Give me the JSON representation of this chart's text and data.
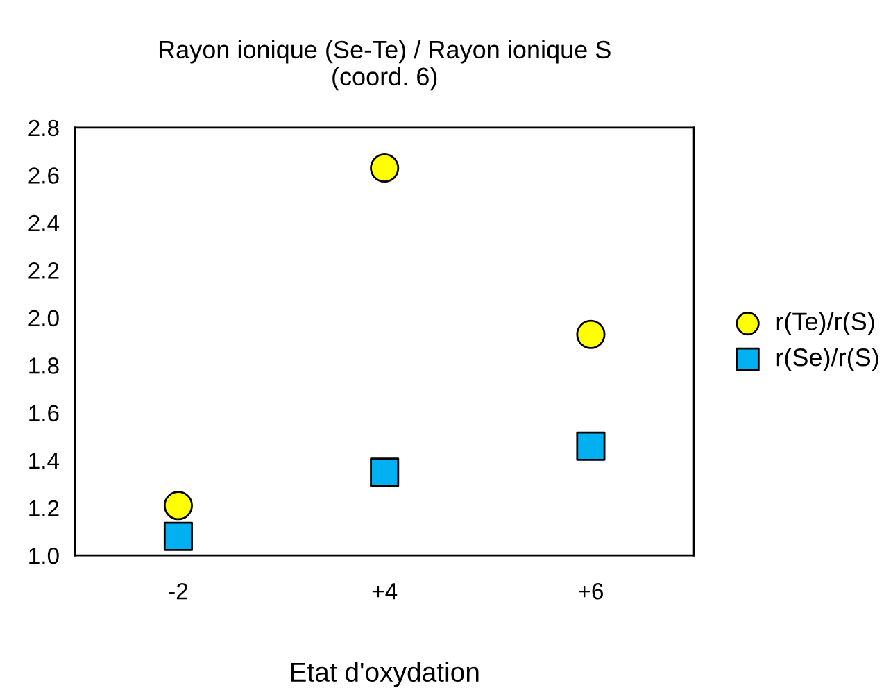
{
  "chart_data": {
    "type": "scatter",
    "title": "Rayon ionique (Se-Te) / Rayon ionique S\n(coord. 6)",
    "xlabel": "Etat d'oxydation",
    "categories": [
      "-2",
      "+4",
      "+6"
    ],
    "series": [
      {
        "name": "r(Te)/r(S)",
        "color": "#ffff00",
        "marker": "circle",
        "values": [
          1.21,
          2.63,
          1.93
        ]
      },
      {
        "name": "r(Se)/r(S)",
        "color": "#00b0f0",
        "marker": "square",
        "values": [
          1.08,
          1.35,
          1.46
        ]
      }
    ],
    "ylim": [
      1.0,
      2.8
    ],
    "yticks": [
      {
        "value": 1.0,
        "label": "1.0"
      },
      1.2,
      1.4,
      1.6,
      1.8,
      {
        "value": 2.0,
        "label": "2.0"
      },
      2.2,
      2.4,
      2.6,
      2.8
    ],
    "grid": false,
    "legend": "right"
  }
}
